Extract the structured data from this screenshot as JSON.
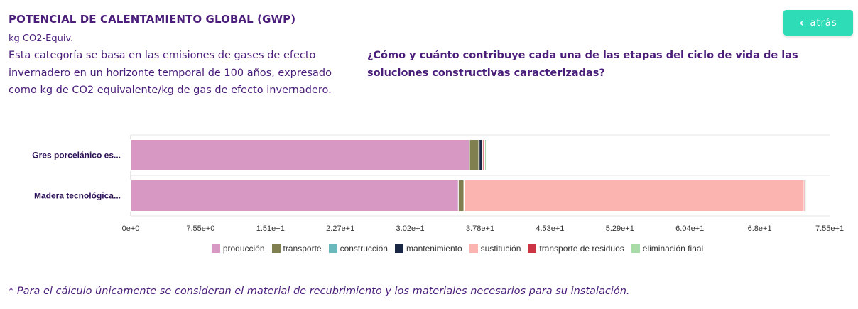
{
  "header": {
    "title": "POTENCIAL DE CALENTAMIENTO GLOBAL (GWP)",
    "unit": "kg CO2-Equiv.",
    "description": "Esta categoría se basa en las emisiones de gases de efecto invernadero en un horizonte temporal de 100 años, expresado como kg de CO2 equivalente/kg de gas de efecto invernadero.",
    "question": "¿Cómo y cuánto contribuye cada una de las etapas del ciclo de vida de las soluciones constructivas caracterizadas?"
  },
  "back_button": {
    "label": "atrás",
    "icon": "chevron-left-icon",
    "color": "#2fdcb8"
  },
  "chart_data": {
    "type": "bar",
    "orientation": "horizontal",
    "stacked": true,
    "categories": [
      "Gres porcelánico es...",
      "Madera tecnológica..."
    ],
    "series": [
      {
        "name": "producción",
        "color": "#d898c4",
        "values": [
          36.6,
          35.4
        ]
      },
      {
        "name": "transporte",
        "color": "#7f7f4f",
        "values": [
          1.0,
          0.6
        ]
      },
      {
        "name": "construcción",
        "color": "#6ab9bd",
        "values": [
          0.05,
          0.05
        ]
      },
      {
        "name": "mantenimiento",
        "color": "#1a2744",
        "values": [
          0.3,
          0.0
        ]
      },
      {
        "name": "sustitución",
        "color": "#fcb4b0",
        "values": [
          0.1,
          36.7
        ]
      },
      {
        "name": "transporte de residuos",
        "color": "#cc3344",
        "values": [
          0.2,
          0.1
        ]
      },
      {
        "name": "eliminación final",
        "color": "#a8dba8",
        "values": [
          0.15,
          0.1
        ]
      }
    ],
    "xlim": [
      0,
      75.5
    ],
    "xticks": [
      "0e+0",
      "7.55e+0",
      "1.51e+1",
      "2.27e+1",
      "3.02e+1",
      "3.78e+1",
      "4.53e+1",
      "5.29e+1",
      "6.04e+1",
      "6.8e+1",
      "7.55e+1"
    ],
    "legend_position": "bottom"
  },
  "footnote": "* Para el cálculo únicamente se consideran el material de recubrimiento y los materiales necesarios para su instalación."
}
